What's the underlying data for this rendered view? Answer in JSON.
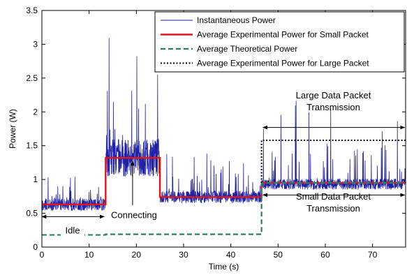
{
  "chart_data": {
    "type": "line",
    "xlabel": "Time (s)",
    "ylabel": "Power (W)",
    "xlim": [
      0,
      77
    ],
    "ylim": [
      0,
      3.5
    ],
    "x_ticks": [
      0,
      10,
      20,
      30,
      40,
      50,
      60,
      70
    ],
    "y_ticks": [
      0,
      0.5,
      1,
      1.5,
      2,
      2.5,
      3,
      3.5
    ],
    "grid": false,
    "legend_position": "top-right",
    "colors": {
      "instantaneous": "#1f1fa8",
      "small_packet": "#e3141b",
      "theoretical": "#2e7d5b",
      "large_packet": "#000000"
    },
    "series": [
      {
        "name": "Instantaneous Power",
        "style": "solid-thin",
        "segments": [
          {
            "x_start": 0,
            "x_end": 13.5,
            "base": 0.63,
            "noise": 0.09,
            "spike_peak": 1.05
          },
          {
            "x_start": 13.5,
            "x_end": 25,
            "base": 1.32,
            "noise": 0.28,
            "spike_peak": 3.3
          },
          {
            "x_start": 25,
            "x_end": 46.5,
            "base": 0.74,
            "noise": 0.09,
            "spike_peak": 1.55
          },
          {
            "x_start": 46.5,
            "x_end": 77,
            "base": 0.93,
            "noise": 0.08,
            "spike_peak": 2.25
          }
        ]
      },
      {
        "name": "Average Experimental Power for Small Packet",
        "style": "solid-thick",
        "steps": [
          {
            "x_start": 0,
            "x_end": 13.5,
            "y": 0.63
          },
          {
            "x_start": 13.5,
            "x_end": 25,
            "y": 1.32
          },
          {
            "x_start": 25,
            "x_end": 46.5,
            "y": 0.74
          },
          {
            "x_start": 46.5,
            "x_end": 77,
            "y": 0.95
          }
        ]
      },
      {
        "name": "Average Theoretical Power",
        "style": "dashed",
        "steps": [
          {
            "x_start": 0,
            "x_end": 13.5,
            "y": 0.18
          },
          {
            "x_start": 13.5,
            "x_end": 46.5,
            "y": 0.19
          },
          {
            "x_start": 46.5,
            "x_end": 77,
            "y": 0.95
          }
        ]
      },
      {
        "name": "Average Experimental Power for Large Packet",
        "style": "dotted",
        "steps": [
          {
            "x_start": 46.5,
            "x_end": 77,
            "y": 1.58
          }
        ]
      }
    ],
    "annotations": [
      {
        "id": "idle",
        "lines": [
          "Idle"
        ],
        "text_x": 6.5,
        "text_y": 0.2,
        "arrow": {
          "type": "double",
          "x1": 0,
          "x2": 13.2,
          "y": 0.45
        }
      },
      {
        "id": "connecting",
        "lines": [
          "Connecting"
        ],
        "text_x": 19.5,
        "text_y": 0.43,
        "arrow": {
          "type": "up",
          "x": 19.2,
          "y_from": 0.62,
          "y_to": 1.27
        }
      },
      {
        "id": "large",
        "lines": [
          "Large Data Packet",
          "Transmission"
        ],
        "text_x": 61.7,
        "text_y": 2.2,
        "arrow": {
          "type": "double",
          "x1": 46.8,
          "x2": 76.8,
          "y": 1.77
        }
      },
      {
        "id": "small",
        "lines": [
          "Small Data Packet",
          "Transmission"
        ],
        "text_x": 61.7,
        "text_y": 0.7,
        "arrow": {
          "type": "double",
          "x1": 46.8,
          "x2": 76.8,
          "y": 0.77
        }
      }
    ]
  }
}
